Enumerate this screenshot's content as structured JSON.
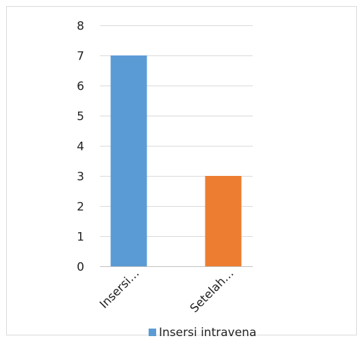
{
  "chart_data": {
    "type": "bar",
    "categories": [
      "Insersi…",
      "Setelah…"
    ],
    "values": [
      7,
      3
    ],
    "bar_colors": [
      "#5B9BD5",
      "#ED7D31"
    ],
    "ylim": [
      0,
      8
    ],
    "y_ticks": [
      0,
      1,
      2,
      3,
      4,
      5,
      6,
      7,
      8
    ],
    "grid": true,
    "gridline_color": "#D9D9D9",
    "legend": {
      "placement": "bottom",
      "entries": [
        {
          "label": "Insersi intravena",
          "color": "#5B9BD5"
        }
      ]
    }
  }
}
